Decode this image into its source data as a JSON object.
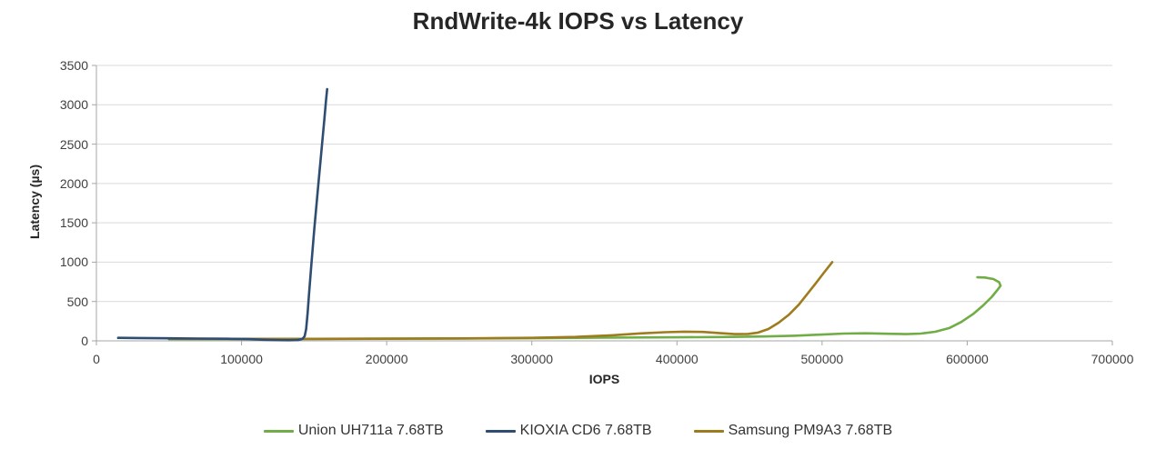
{
  "colors": {
    "background": "#FFFFFF",
    "gridline": "#D9D9D9",
    "axis": "#A6A6A6",
    "tick_text": "#404040",
    "title_text": "#262626"
  },
  "chart_data": {
    "type": "line",
    "title": "RndWrite-4k IOPS vs Latency",
    "xlabel": "IOPS",
    "ylabel": "Latency (µs)",
    "xlim": [
      0,
      700000
    ],
    "ylim": [
      0,
      3500
    ],
    "x_ticks": [
      0,
      100000,
      200000,
      300000,
      400000,
      500000,
      600000,
      700000
    ],
    "y_ticks": [
      0,
      500,
      1000,
      1500,
      2000,
      2500,
      3000,
      3500
    ],
    "grid": "horizontal-only",
    "legend_position": "bottom-center",
    "series": [
      {
        "name": "Union UH711a 7.68TB",
        "color": "#70AD47",
        "points": [
          [
            50000,
            22
          ],
          [
            100000,
            23
          ],
          [
            150000,
            24
          ],
          [
            200000,
            26
          ],
          [
            250000,
            30
          ],
          [
            300000,
            34
          ],
          [
            350000,
            40
          ],
          [
            400000,
            45
          ],
          [
            430000,
            48
          ],
          [
            460000,
            55
          ],
          [
            480000,
            65
          ],
          [
            500000,
            80
          ],
          [
            515000,
            92
          ],
          [
            530000,
            96
          ],
          [
            545000,
            90
          ],
          [
            558000,
            86
          ],
          [
            568000,
            92
          ],
          [
            578000,
            115
          ],
          [
            588000,
            165
          ],
          [
            596000,
            240
          ],
          [
            604000,
            340
          ],
          [
            611000,
            450
          ],
          [
            617000,
            560
          ],
          [
            621000,
            650
          ],
          [
            623000,
            700
          ],
          [
            622000,
            745
          ],
          [
            618000,
            785
          ],
          [
            612000,
            805
          ],
          [
            607000,
            808
          ]
        ]
      },
      {
        "name": "Samsung PM9A3 7.68TB",
        "color": "#9E7C1E",
        "points": [
          [
            50000,
            26
          ],
          [
            100000,
            25
          ],
          [
            150000,
            25
          ],
          [
            200000,
            28
          ],
          [
            250000,
            31
          ],
          [
            300000,
            38
          ],
          [
            330000,
            50
          ],
          [
            355000,
            70
          ],
          [
            375000,
            95
          ],
          [
            392000,
            110
          ],
          [
            405000,
            117
          ],
          [
            418000,
            113
          ],
          [
            430000,
            97
          ],
          [
            440000,
            86
          ],
          [
            449000,
            88
          ],
          [
            456000,
            105
          ],
          [
            463000,
            150
          ],
          [
            470000,
            230
          ],
          [
            477000,
            330
          ],
          [
            484000,
            460
          ],
          [
            490000,
            600
          ],
          [
            496000,
            740
          ],
          [
            501000,
            860
          ],
          [
            507000,
            1000
          ]
        ]
      },
      {
        "name": "KIOXIA CD6 7.68TB",
        "color": "#2F4D72",
        "points": [
          [
            15000,
            38
          ],
          [
            30000,
            36
          ],
          [
            50000,
            32
          ],
          [
            70000,
            29
          ],
          [
            90000,
            27
          ],
          [
            105000,
            22
          ],
          [
            115000,
            14
          ],
          [
            125000,
            9
          ],
          [
            133000,
            8
          ],
          [
            139000,
            10
          ],
          [
            142000,
            25
          ],
          [
            143500,
            60
          ],
          [
            144500,
            150
          ],
          [
            145500,
            350
          ],
          [
            146500,
            600
          ],
          [
            148000,
            950
          ],
          [
            150000,
            1400
          ],
          [
            152500,
            1900
          ],
          [
            155000,
            2400
          ],
          [
            157000,
            2800
          ],
          [
            158200,
            3050
          ],
          [
            159000,
            3200
          ]
        ]
      }
    ],
    "legend_order": [
      "Union UH711a 7.68TB",
      "KIOXIA CD6 7.68TB",
      "Samsung PM9A3 7.68TB"
    ]
  }
}
